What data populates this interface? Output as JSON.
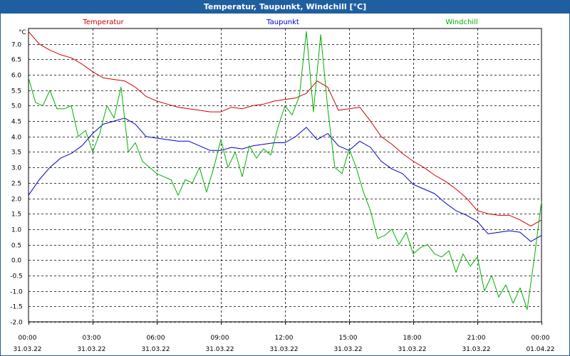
{
  "window": {
    "title": "Temperatur, Taupunkt, Windchill [°C]"
  },
  "chart_data": {
    "type": "line",
    "title": "Temperatur, Taupunkt, Windchill [°C]",
    "ylabel": "°C",
    "xlabel": "",
    "ylim": [
      -2.0,
      7.5
    ],
    "xlim": [
      0,
      24
    ],
    "grid": true,
    "legend": "top",
    "y_ticks": [
      "-2.0",
      "-1.5",
      "-1.0",
      "-0.5",
      "0.0",
      "0.5",
      "1.0",
      "1.5",
      "2.0",
      "2.5",
      "3.0",
      "3.5",
      "4.0",
      "4.5",
      "5.0",
      "5.5",
      "6.0",
      "6.5",
      "7.0"
    ],
    "x_ticks": [
      {
        "time": "00:00",
        "date": "31.03.22"
      },
      {
        "time": "03:00",
        "date": "31.03.22"
      },
      {
        "time": "06:00",
        "date": "31.03.22"
      },
      {
        "time": "09:00",
        "date": "31.03.22"
      },
      {
        "time": "12:00",
        "date": "31.03.22"
      },
      {
        "time": "15:00",
        "date": "31.03.22"
      },
      {
        "time": "18:00",
        "date": "31.03.22"
      },
      {
        "time": "21:00",
        "date": "31.03.22"
      },
      {
        "time": "00:00",
        "date": "01.04.22"
      }
    ],
    "series": [
      {
        "name": "Temperatur",
        "color": "#d00000",
        "x": [
          0,
          0.5,
          1,
          1.5,
          2,
          2.5,
          3,
          3.5,
          4,
          4.5,
          5,
          5.5,
          6,
          6.5,
          7,
          7.5,
          8,
          8.5,
          9,
          9.5,
          10,
          10.5,
          11,
          11.5,
          12,
          12.5,
          13,
          13.5,
          14,
          14.5,
          15,
          15.5,
          16,
          16.5,
          17,
          17.5,
          18,
          18.5,
          19,
          19.5,
          20,
          20.5,
          21,
          21.5,
          22,
          22.5,
          23,
          23.5,
          24
        ],
        "values": [
          7.4,
          7.0,
          6.8,
          6.65,
          6.55,
          6.35,
          6.1,
          5.9,
          5.85,
          5.8,
          5.6,
          5.3,
          5.15,
          5.05,
          4.95,
          4.9,
          4.85,
          4.8,
          4.8,
          4.95,
          4.9,
          5.0,
          5.05,
          5.15,
          5.2,
          5.25,
          5.4,
          5.8,
          5.6,
          4.85,
          4.9,
          4.95,
          4.5,
          4.0,
          3.75,
          3.45,
          3.2,
          3.0,
          2.75,
          2.55,
          2.3,
          2.0,
          1.6,
          1.5,
          1.45,
          1.45,
          1.3,
          1.1,
          1.3
        ]
      },
      {
        "name": "Taupunkt",
        "color": "#0000c0",
        "x": [
          0,
          0.5,
          1,
          1.5,
          2,
          2.5,
          3,
          3.5,
          4,
          4.5,
          5,
          5.5,
          6,
          6.5,
          7,
          7.5,
          8,
          8.5,
          9,
          9.5,
          10,
          10.5,
          11,
          11.5,
          12,
          12.5,
          13,
          13.5,
          14,
          14.5,
          15,
          15.5,
          16,
          16.5,
          17,
          17.5,
          18,
          18.5,
          19,
          19.5,
          20,
          20.5,
          21,
          21.5,
          22,
          22.5,
          23,
          23.5,
          24
        ],
        "values": [
          2.1,
          2.6,
          3.0,
          3.3,
          3.45,
          3.7,
          4.1,
          4.4,
          4.5,
          4.6,
          4.4,
          4.0,
          3.95,
          3.9,
          3.85,
          3.85,
          3.7,
          3.55,
          3.55,
          3.65,
          3.6,
          3.7,
          3.75,
          3.8,
          3.8,
          4.0,
          4.3,
          3.9,
          4.1,
          3.7,
          3.55,
          3.85,
          3.65,
          3.2,
          2.95,
          2.8,
          2.45,
          2.3,
          2.15,
          1.85,
          1.6,
          1.45,
          1.25,
          0.85,
          0.9,
          0.95,
          0.9,
          0.6,
          0.8
        ]
      },
      {
        "name": "Windchill",
        "color": "#00b000",
        "x": [
          0,
          0.33,
          0.67,
          1,
          1.33,
          1.67,
          2,
          2.33,
          2.67,
          3,
          3.33,
          3.67,
          4,
          4.33,
          4.67,
          5,
          5.33,
          5.67,
          6,
          6.33,
          6.67,
          7,
          7.33,
          7.67,
          8,
          8.33,
          8.67,
          9,
          9.33,
          9.67,
          10,
          10.33,
          10.67,
          11,
          11.33,
          11.67,
          12,
          12.33,
          12.67,
          13,
          13.33,
          13.67,
          14,
          14.33,
          14.67,
          15,
          15.33,
          15.67,
          16,
          16.33,
          16.67,
          17,
          17.33,
          17.67,
          18,
          18.33,
          18.67,
          19,
          19.33,
          19.67,
          20,
          20.33,
          20.67,
          21,
          21.33,
          21.67,
          22,
          22.33,
          22.67,
          23,
          23.33,
          23.67,
          24
        ],
        "values": [
          5.9,
          5.1,
          5.0,
          5.5,
          4.9,
          4.9,
          5.0,
          4.0,
          4.2,
          3.5,
          4.1,
          5.0,
          4.6,
          5.6,
          3.5,
          3.8,
          3.2,
          3.0,
          2.8,
          2.7,
          2.6,
          2.1,
          2.6,
          2.5,
          3.0,
          2.2,
          3.0,
          3.9,
          3.0,
          3.5,
          2.7,
          3.7,
          3.3,
          3.6,
          3.4,
          4.3,
          5.0,
          4.7,
          5.3,
          7.4,
          4.8,
          7.3,
          4.9,
          3.0,
          2.8,
          3.6,
          3.0,
          2.2,
          1.6,
          0.7,
          0.8,
          1.0,
          0.5,
          0.9,
          0.2,
          0.4,
          0.5,
          0.2,
          0.1,
          0.3,
          -0.4,
          0.2,
          -0.2,
          0.1,
          -1.0,
          -0.5,
          -1.2,
          -0.8,
          -1.4,
          -0.9,
          -1.6,
          0.1,
          1.9
        ]
      }
    ]
  }
}
